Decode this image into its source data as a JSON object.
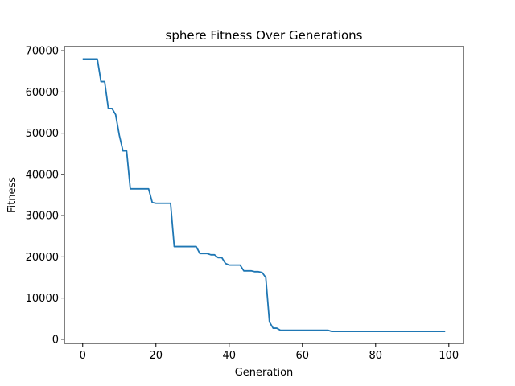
{
  "chart_data": {
    "type": "line",
    "title": "sphere Fitness Over Generations",
    "xlabel": "Generation",
    "ylabel": "Fitness",
    "xlim": [
      -5,
      104
    ],
    "ylim": [
      -1000,
      71000
    ],
    "x_ticks": [
      0,
      20,
      40,
      60,
      80,
      100
    ],
    "y_ticks": [
      0,
      10000,
      20000,
      30000,
      40000,
      50000,
      60000,
      70000
    ],
    "grid": false,
    "line_color": "#1f77b4",
    "series": [
      {
        "x": [
          0,
          1,
          2,
          3,
          4,
          5,
          6,
          7,
          8,
          9,
          10,
          11,
          12,
          13,
          14,
          15,
          16,
          17,
          18,
          19,
          20,
          21,
          22,
          23,
          24,
          25,
          26,
          27,
          28,
          29,
          30,
          31,
          32,
          33,
          34,
          35,
          36,
          37,
          38,
          39,
          40,
          41,
          42,
          43,
          44,
          45,
          46,
          47,
          48,
          49,
          50,
          51,
          52,
          53,
          54,
          55,
          56,
          57,
          58,
          59,
          60,
          61,
          62,
          63,
          64,
          65,
          66,
          67,
          68,
          69,
          70,
          71,
          72,
          73,
          74,
          75,
          76,
          77,
          78,
          79,
          80,
          81,
          82,
          83,
          84,
          85,
          86,
          87,
          88,
          89,
          90,
          91,
          92,
          93,
          94,
          95,
          96,
          97,
          98,
          99
        ],
        "values": [
          68000,
          68000,
          68000,
          68000,
          68000,
          62500,
          62500,
          56000,
          56000,
          54500,
          49500,
          45700,
          45700,
          36500,
          36500,
          36500,
          36500,
          36500,
          36500,
          33200,
          33000,
          33000,
          33000,
          33000,
          33000,
          22500,
          22500,
          22500,
          22500,
          22500,
          22500,
          22500,
          20800,
          20800,
          20800,
          20500,
          20500,
          19800,
          19800,
          18400,
          18000,
          18000,
          18000,
          18000,
          16600,
          16600,
          16600,
          16400,
          16400,
          16200,
          15000,
          4200,
          2700,
          2700,
          2200,
          2200,
          2200,
          2200,
          2200,
          2200,
          2200,
          2200,
          2200,
          2200,
          2200,
          2200,
          2200,
          2200,
          1900,
          1900,
          1900,
          1900,
          1900,
          1900,
          1900,
          1900,
          1900,
          1900,
          1900,
          1900,
          1900,
          1900,
          1900,
          1900,
          1900,
          1900,
          1900,
          1900,
          1900,
          1900,
          1900,
          1900,
          1900,
          1900,
          1900,
          1900,
          1900,
          1900,
          1900,
          1900
        ]
      }
    ]
  }
}
